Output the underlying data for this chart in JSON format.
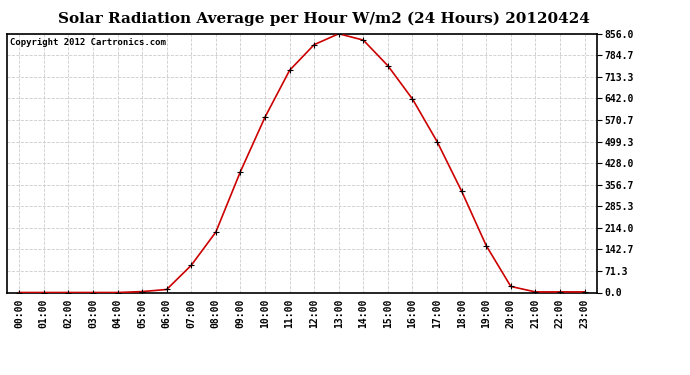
{
  "title": "Solar Radiation Average per Hour W/m2 (24 Hours) 20120424",
  "copyright": "Copyright 2012 Cartronics.com",
  "x_labels": [
    "00:00",
    "01:00",
    "02:00",
    "03:00",
    "04:00",
    "05:00",
    "06:00",
    "07:00",
    "08:00",
    "09:00",
    "10:00",
    "11:00",
    "12:00",
    "13:00",
    "14:00",
    "15:00",
    "16:00",
    "17:00",
    "18:00",
    "19:00",
    "20:00",
    "21:00",
    "22:00",
    "23:00"
  ],
  "y_values": [
    0.0,
    0.0,
    0.0,
    0.0,
    0.0,
    3.0,
    10.0,
    90.0,
    200.0,
    400.0,
    580.0,
    735.0,
    820.0,
    856.0,
    835.0,
    750.0,
    640.0,
    499.3,
    335.0,
    155.0,
    20.0,
    2.0,
    2.0,
    2.0
  ],
  "line_color": "#cc0000",
  "marker_color": "#000000",
  "plot_bg_color": "#ffffff",
  "grid_color": "#cccccc",
  "yticks": [
    0.0,
    71.3,
    142.7,
    214.0,
    285.3,
    356.7,
    428.0,
    499.3,
    570.7,
    642.0,
    713.3,
    784.7,
    856.0
  ],
  "ylim": [
    0.0,
    856.0
  ],
  "title_fontsize": 11,
  "copyright_fontsize": 6.5,
  "tick_fontsize": 7,
  "border_color": "#000000",
  "outer_bg_color": "#ffffff"
}
